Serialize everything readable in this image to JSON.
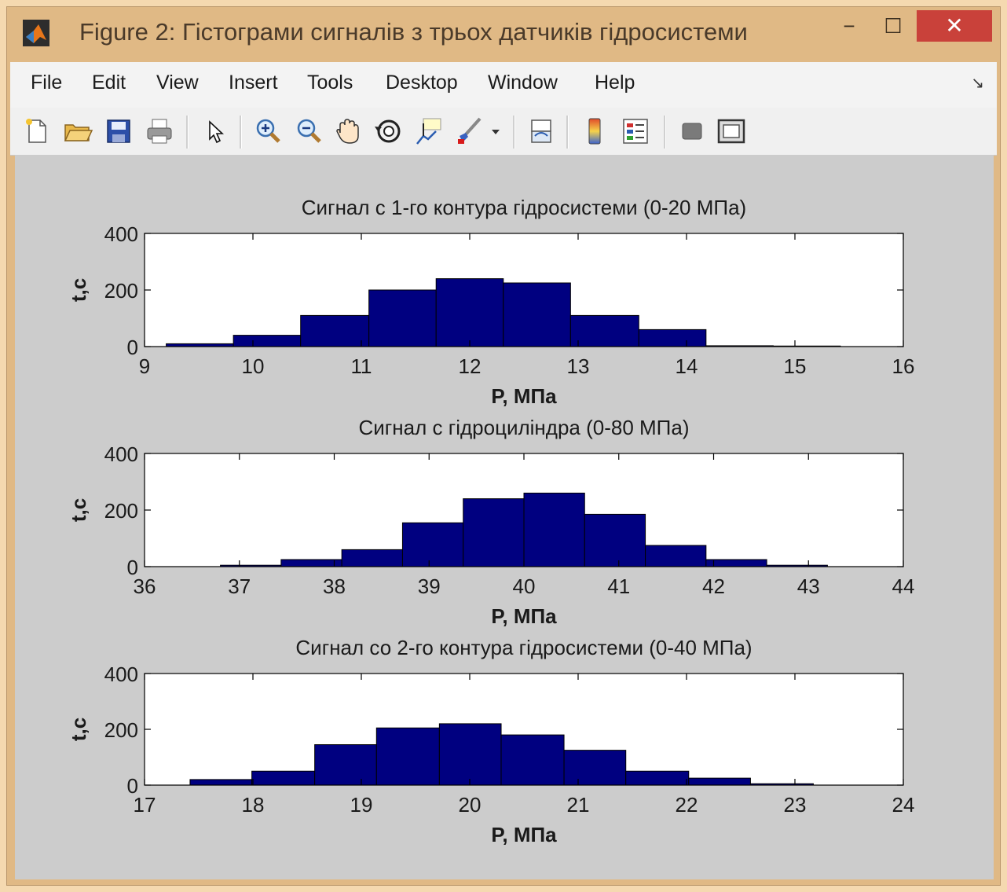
{
  "window": {
    "title": "Figure 2: Гістограми сигналів з трьох датчиків гідросистеми",
    "minimize_symbol": "−",
    "maximize_symbol": "☐",
    "close_symbol": "✕"
  },
  "menu": [
    "File",
    "Edit",
    "View",
    "Insert",
    "Tools",
    "Desktop",
    "Window",
    "Help"
  ],
  "menu_overflow_symbol": "↘",
  "toolbar_icons": [
    "new-figure-icon",
    "open-file-icon",
    "save-icon",
    "print-icon",
    "pointer-icon",
    "zoom-in-icon",
    "zoom-out-icon",
    "pan-hand-icon",
    "rotate-3d-icon",
    "data-cursor-icon",
    "brush-icon",
    "brush-dropdown-icon",
    "link-plot-icon",
    "colorbar-icon",
    "legend-icon",
    "hide-plot-tools-icon",
    "show-plot-tools-icon"
  ],
  "colors": {
    "bar_fill": "#000080",
    "bar_edge": "#000000",
    "figure_bg": "#cccccc",
    "axes_bg": "#ffffff"
  },
  "chart_data": [
    {
      "type": "bar",
      "title": "Сигнал с 1-го контура гідросистеми (0-20 МПа)",
      "xlabel": "P, МПа",
      "ylabel": "t,c",
      "xlim": [
        9,
        16
      ],
      "ylim": [
        0,
        400
      ],
      "xticks": [
        "9",
        "10",
        "11",
        "12",
        "13",
        "14",
        "15",
        "16"
      ],
      "yticks": [
        "0",
        "200",
        "400"
      ],
      "bin_edges": [
        9.2,
        9.82,
        10.44,
        11.07,
        11.69,
        12.31,
        12.93,
        13.56,
        14.18,
        14.8,
        15.42
      ],
      "values": [
        10,
        40,
        110,
        200,
        240,
        225,
        110,
        60,
        3,
        2
      ]
    },
    {
      "type": "bar",
      "title": "Сигнал с гідроциліндра (0-80 МПа)",
      "xlabel": "P, МПа",
      "ylabel": "t,c",
      "xlim": [
        36,
        44
      ],
      "ylim": [
        0,
        400
      ],
      "xticks": [
        "36",
        "37",
        "38",
        "39",
        "40",
        "41",
        "42",
        "43",
        "44"
      ],
      "yticks": [
        "0",
        "200",
        "400"
      ],
      "bin_edges": [
        36.8,
        37.44,
        38.08,
        38.72,
        39.36,
        40.0,
        40.64,
        41.28,
        41.92,
        42.56,
        43.2
      ],
      "values": [
        5,
        25,
        60,
        155,
        240,
        260,
        185,
        75,
        25,
        5
      ]
    },
    {
      "type": "bar",
      "title": "Сигнал со 2-го контура гідросистеми (0-40 МПа)",
      "xlabel": "P, МПа",
      "ylabel": "t,c",
      "xlim": [
        17,
        24
      ],
      "ylim": [
        0,
        400
      ],
      "xticks": [
        "17",
        "18",
        "19",
        "20",
        "21",
        "22",
        "23",
        "24"
      ],
      "yticks": [
        "0",
        "200",
        "400"
      ],
      "bin_edges": [
        17.42,
        17.99,
        18.57,
        19.14,
        19.72,
        20.29,
        20.87,
        21.44,
        22.02,
        22.59,
        23.17
      ],
      "values": [
        20,
        50,
        145,
        205,
        220,
        180,
        125,
        50,
        25,
        5
      ]
    }
  ]
}
